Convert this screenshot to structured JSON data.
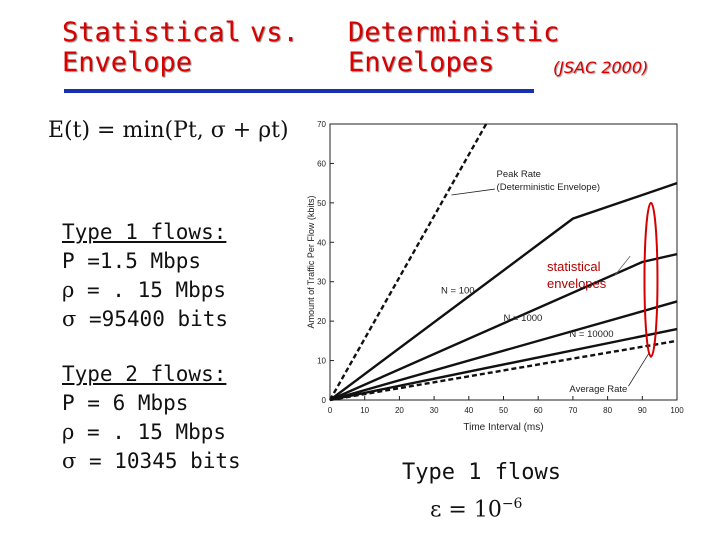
{
  "slide": {
    "title_left_line1": "Statistical",
    "title_left_line2": "Envelope",
    "title_vs": "vs.",
    "title_right_line1": "Deterministic",
    "title_right_line2": "Envelopes",
    "reference": "(JSAC 2000)",
    "formula": "E(t) = min(Pt, σ + ρt)",
    "annotation": "statistical envelopes",
    "caption": "Type 1 flows",
    "epsilon": "ε = 10",
    "epsilon_exp": "−6",
    "accent_color": "#d90000",
    "rule_color": "#1830b0"
  },
  "type1": {
    "heading": "Type 1 flows:",
    "p": "P =1.5 Mbps",
    "rho_sym": "ρ",
    "rho": " = . 15 Mbps",
    "sigma_sym": "σ",
    "sigma": " =95400 bits"
  },
  "type2": {
    "heading": "Type 2 flows:",
    "p": "P = 6 Mbps",
    "rho_sym": "ρ",
    "rho": " = . 15 Mbps",
    "sigma_sym": "σ",
    "sigma": " = 10345 bits"
  },
  "chart_data": {
    "type": "line",
    "xlabel": "Time Interval (ms)",
    "ylabel": "Amount of Traffic Per Flow (kbits)",
    "xlim": [
      0,
      100
    ],
    "ylim": [
      0,
      70
    ],
    "xticks": [
      0,
      10,
      20,
      30,
      40,
      50,
      60,
      70,
      80,
      90,
      100
    ],
    "yticks": [
      0,
      10,
      20,
      30,
      40,
      50,
      60,
      70
    ],
    "series": [
      {
        "name": "Peak Rate (Deterministic Envelope)",
        "style": "dashed",
        "x": [
          0,
          45
        ],
        "y": [
          0,
          70
        ]
      },
      {
        "name": "N = 100",
        "style": "solid",
        "x": [
          0,
          70,
          100
        ],
        "y": [
          0,
          46,
          55
        ]
      },
      {
        "name": "N = 1000",
        "style": "solid",
        "x": [
          0,
          90,
          100
        ],
        "y": [
          0,
          35,
          37
        ]
      },
      {
        "name": "N = 10000",
        "style": "solid",
        "x": [
          0,
          100
        ],
        "y": [
          0,
          25
        ]
      },
      {
        "name": "",
        "style": "solid",
        "x": [
          0,
          100
        ],
        "y": [
          0,
          18
        ]
      },
      {
        "name": "Average Rate",
        "style": "dashed",
        "x": [
          0,
          100
        ],
        "y": [
          0,
          15
        ]
      }
    ],
    "annotations": [
      {
        "text_line1": "Peak Rate",
        "text_line2": "(Deterministic Envelope)",
        "target_x": 35,
        "target_y": 52
      },
      {
        "text": "N = 100",
        "x": 32,
        "y": 27
      },
      {
        "text": "N = 1000",
        "x": 50,
        "y": 20
      },
      {
        "text": "N = 10000",
        "x": 69,
        "y": 16
      },
      {
        "text": "Average Rate",
        "x": 69,
        "y": 2,
        "target_x": 92,
        "target_y": 12
      }
    ]
  }
}
